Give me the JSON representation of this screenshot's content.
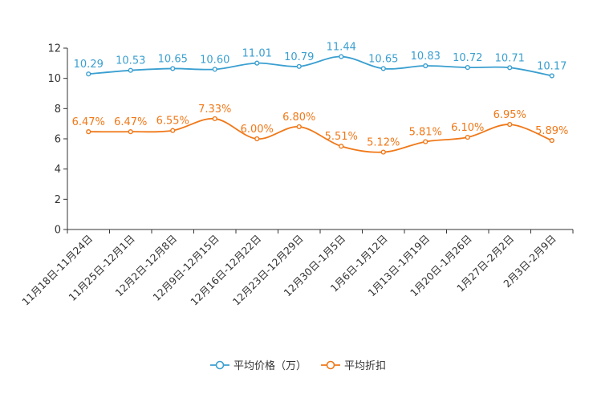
{
  "chart_data": {
    "type": "line",
    "categories": [
      "11月18日-11月24日",
      "11月25日-12月1日",
      "12月2日-12月8日",
      "12月9日-12月15日",
      "12月16日-12月22日",
      "12月23日-12月29日",
      "12月30日-1月5日",
      "1月6日-1月12日",
      "1月13日-1月19日",
      "1月20日-1月26日",
      "1月27日-2月2日",
      "2月3日-2月9日"
    ],
    "series": [
      {
        "name": "平均价格（万）",
        "color": "#3a9fd0",
        "values": [
          10.29,
          10.53,
          10.65,
          10.6,
          11.01,
          10.79,
          11.44,
          10.65,
          10.83,
          10.72,
          10.71,
          10.17
        ],
        "labels": [
          "10.29",
          "10.53",
          "10.65",
          "10.60",
          "11.01",
          "10.79",
          "11.44",
          "10.65",
          "10.83",
          "10.72",
          "10.71",
          "10.17"
        ]
      },
      {
        "name": "平均折扣",
        "color": "#f07818",
        "values": [
          6.47,
          6.47,
          6.55,
          7.33,
          6.0,
          6.8,
          5.51,
          5.12,
          5.81,
          6.1,
          6.95,
          5.89
        ],
        "labels": [
          "6.47%",
          "6.47%",
          "6.55%",
          "7.33%",
          "6.00%",
          "6.80%",
          "5.51%",
          "5.12%",
          "5.81%",
          "6.10%",
          "6.95%",
          "5.89%"
        ]
      }
    ],
    "y_axis": {
      "min": 0,
      "max": 12,
      "ticks": [
        0,
        2,
        4,
        6,
        8,
        10,
        12
      ],
      "tick_labels": [
        "0",
        "2",
        "4",
        "6",
        "8",
        "10",
        "12"
      ]
    },
    "title": "",
    "xlabel": "",
    "ylabel": "",
    "grid": false,
    "legend_position": "bottom-center",
    "axis_color": "#333333"
  }
}
